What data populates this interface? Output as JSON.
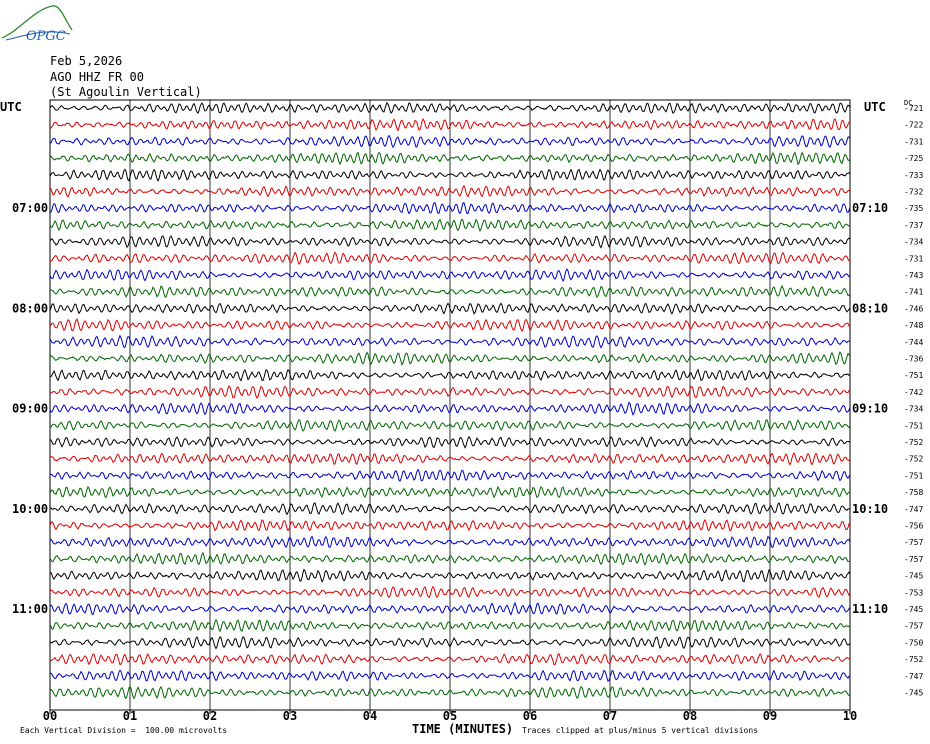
{
  "logo": {
    "text": "OPGC",
    "color": "#1f5fb0",
    "accent": "#2e8b2e"
  },
  "header": {
    "date": "Feb 5,2026",
    "station": "AGO HHZ FR 00",
    "site": "(St Agoulin Vertical)"
  },
  "footer": {
    "division_note": "Each Vertical Division =  100.00 microvolts",
    "clip_note": "Traces clipped at plus/minus 5 vertical divisions"
  },
  "chart_data": {
    "type": "line",
    "xlabel": "TIME (MINUTES)",
    "xlim": [
      0,
      10
    ],
    "x_ticks": [
      "00",
      "01",
      "02",
      "03",
      "04",
      "05",
      "06",
      "07",
      "08",
      "09",
      "10"
    ],
    "left_axis_label": "UTC",
    "right_axis_label": "UTC",
    "offset_column_label": "DC",
    "left_time_labels": [
      {
        "row": 6,
        "label": "07:00"
      },
      {
        "row": 12,
        "label": "08:00"
      },
      {
        "row": 18,
        "label": "09:00"
      },
      {
        "row": 24,
        "label": "10:00"
      },
      {
        "row": 30,
        "label": "11:00"
      }
    ],
    "right_time_labels": [
      {
        "row": 6,
        "label": "07:10"
      },
      {
        "row": 12,
        "label": "08:10"
      },
      {
        "row": 18,
        "label": "09:10"
      },
      {
        "row": 24,
        "label": "10:10"
      },
      {
        "row": 30,
        "label": "11:10"
      }
    ],
    "trace_colors": [
      "#000000",
      "#dd0000",
      "#0000cc",
      "#006600"
    ],
    "offsets": [
      -721,
      -722,
      -731,
      -725,
      -733,
      -732,
      -735,
      -737,
      -734,
      -731,
      -743,
      -741,
      -746,
      -748,
      -744,
      -736,
      -751,
      -742,
      -734,
      -751,
      -752,
      -752,
      -751,
      -758,
      -747,
      -756,
      -757,
      -757,
      -745,
      -753,
      -745,
      -757,
      -750,
      -752,
      -747,
      -745
    ],
    "trace_amplitude_divisions": 1.1,
    "grid": true
  }
}
